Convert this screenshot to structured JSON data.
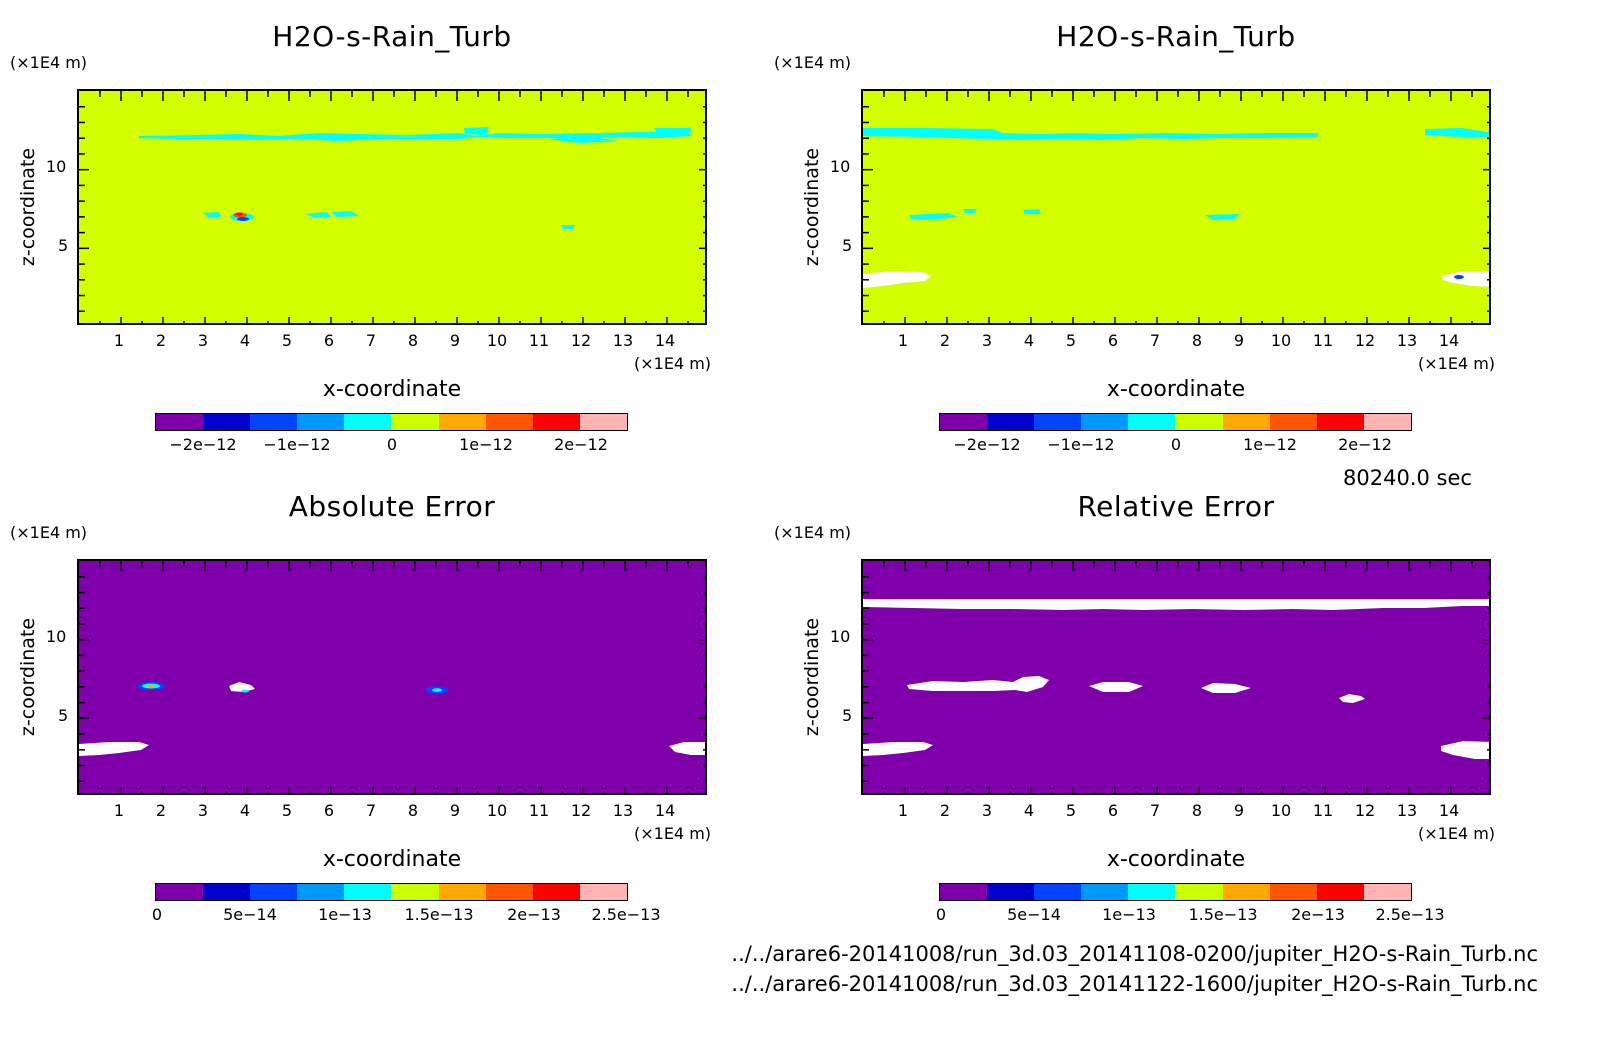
{
  "time_label": "80240.0 sec",
  "file_paths": [
    "../../arare6-20141008/run_3d.03_20141108-0200/jupiter_H2O-s-Rain_Turb.nc",
    "../../arare6-20141008/run_3d.03_20141122-1600/jupiter_H2O-s-Rain_Turb.nc"
  ],
  "colors": {
    "background_yellow": "#d4ff00",
    "background_purple": "#7f00aa",
    "missing": "#ffffff",
    "palette": [
      "#7f00aa",
      "#0000cc",
      "#0044ff",
      "#0099ff",
      "#00ffff",
      "#ccff00",
      "#ffaa00",
      "#ff5500",
      "#ff0000",
      "#ffb3b3"
    ]
  },
  "chart_data": [
    {
      "type": "heatmap",
      "title": "H2O-s-Rain_Turb",
      "xlabel": "x-coordinate",
      "ylabel": "z-coordinate",
      "x_unit": "(×1E4 m)",
      "y_unit": "(×1E4 m)",
      "xlim": [
        0,
        15
      ],
      "ylim": [
        0,
        15
      ],
      "x_ticks": [
        "1",
        "2",
        "3",
        "4",
        "5",
        "6",
        "7",
        "8",
        "9",
        "10",
        "11",
        "12",
        "13",
        "14"
      ],
      "y_ticks": [
        "5",
        "10"
      ],
      "colorbar_labels": [
        "−2e−12",
        "−1e−12",
        "0",
        "1e−12",
        "2e−12"
      ],
      "colorbar_values": [
        -2e-12,
        -1e-12,
        0,
        1e-12,
        2e-12
      ],
      "background_level": "slightly positive (near 0)",
      "features": [
        {
          "kind": "cyan band",
          "x_range": [
            1.4,
            14.6
          ],
          "z": 12.0
        },
        {
          "kind": "cyan patches",
          "x_range": [
            3.0,
            6.8
          ],
          "z": 7.0
        },
        {
          "kind": "dipole red/blue",
          "x": 3.9,
          "z": 7.0
        },
        {
          "kind": "cyan patch",
          "x": 11.6,
          "z": 6.3
        }
      ]
    },
    {
      "type": "heatmap",
      "title": "H2O-s-Rain_Turb",
      "xlabel": "x-coordinate",
      "ylabel": "z-coordinate",
      "x_unit": "(×1E4 m)",
      "y_unit": "(×1E4 m)",
      "xlim": [
        0,
        15
      ],
      "ylim": [
        0,
        15
      ],
      "x_ticks": [
        "1",
        "2",
        "3",
        "4",
        "5",
        "6",
        "7",
        "8",
        "9",
        "10",
        "11",
        "12",
        "13",
        "14"
      ],
      "y_ticks": [
        "5",
        "10"
      ],
      "colorbar_labels": [
        "−2e−12",
        "−1e−12",
        "0",
        "1e−12",
        "2e−12"
      ],
      "colorbar_values": [
        -2e-12,
        -1e-12,
        0,
        1e-12,
        2e-12
      ],
      "background_level": "slightly positive (near 0)",
      "features": [
        {
          "kind": "cyan band",
          "x_range": [
            0,
            11.0
          ],
          "z": 12.2
        },
        {
          "kind": "cyan band",
          "x_range": [
            13.5,
            15
          ],
          "z": 12.2
        },
        {
          "kind": "cyan patches",
          "x_range": [
            1.1,
            4.2
          ],
          "z": 7.0
        },
        {
          "kind": "cyan patch",
          "x": 8.6,
          "z": 6.9
        },
        {
          "kind": "missing",
          "x_range": [
            0,
            1.6
          ],
          "z": 3.0
        },
        {
          "kind": "missing",
          "x_range": [
            14.0,
            15
          ],
          "z": 3.0
        }
      ]
    },
    {
      "type": "heatmap",
      "title": "Absolute Error",
      "xlabel": "x-coordinate",
      "ylabel": "z-coordinate",
      "x_unit": "(×1E4 m)",
      "y_unit": "(×1E4 m)",
      "xlim": [
        0,
        15
      ],
      "ylim": [
        0,
        15
      ],
      "x_ticks": [
        "1",
        "2",
        "3",
        "4",
        "5",
        "6",
        "7",
        "8",
        "9",
        "10",
        "11",
        "12",
        "13",
        "14"
      ],
      "y_ticks": [
        "5",
        "10"
      ],
      "colorbar_labels": [
        "0",
        "5e−14",
        "1e−13",
        "1.5e−13",
        "2e−13",
        "2.5e−13"
      ],
      "colorbar_values": [
        0,
        5e-14,
        1e-13,
        1.5e-13,
        2e-13,
        2.5e-13
      ],
      "background_level": 0,
      "features": [
        {
          "kind": "small hot spot",
          "x": 1.7,
          "z": 7.0
        },
        {
          "kind": "missing",
          "x": 3.9,
          "z": 6.9
        },
        {
          "kind": "small spot",
          "x": 8.5,
          "z": 6.7
        },
        {
          "kind": "missing",
          "x_range": [
            0,
            1.6
          ],
          "z": 3.0
        },
        {
          "kind": "missing",
          "x_range": [
            14.0,
            15
          ],
          "z": 3.0
        }
      ]
    },
    {
      "type": "heatmap",
      "title": "Relative Error",
      "xlabel": "x-coordinate",
      "ylabel": "z-coordinate",
      "x_unit": "(×1E4 m)",
      "y_unit": "(×1E4 m)",
      "xlim": [
        0,
        15
      ],
      "ylim": [
        0,
        15
      ],
      "x_ticks": [
        "1",
        "2",
        "3",
        "4",
        "5",
        "6",
        "7",
        "8",
        "9",
        "10",
        "11",
        "12",
        "13",
        "14"
      ],
      "y_ticks": [
        "5",
        "10"
      ],
      "colorbar_labels": [
        "0",
        "5e−14",
        "1e−13",
        "1.5e−13",
        "2e−13",
        "2.5e−13"
      ],
      "colorbar_values": [
        0,
        5e-14,
        1e-13,
        1.5e-13,
        2e-13,
        2.5e-13
      ],
      "background_level": 0,
      "features": [
        {
          "kind": "missing band",
          "x_range": [
            0,
            15
          ],
          "z": 12.0
        },
        {
          "kind": "missing patches",
          "x_range": [
            1.1,
            4.4
          ],
          "z": 7.0
        },
        {
          "kind": "missing",
          "x": 6.0,
          "z": 6.9
        },
        {
          "kind": "missing",
          "x": 8.6,
          "z": 6.9
        },
        {
          "kind": "missing",
          "x": 11.6,
          "z": 6.3
        },
        {
          "kind": "missing",
          "x_range": [
            0,
            1.6
          ],
          "z": 3.0
        },
        {
          "kind": "missing",
          "x_range": [
            14.0,
            15
          ],
          "z": 3.0
        }
      ]
    }
  ]
}
